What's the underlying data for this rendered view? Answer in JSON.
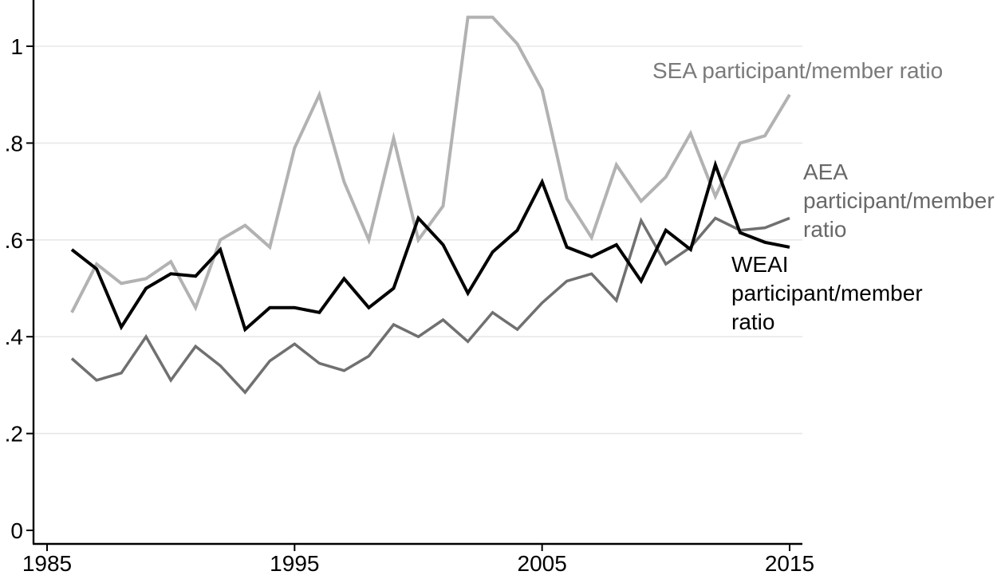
{
  "chart_data": {
    "type": "line",
    "x": [
      1986,
      1987,
      1988,
      1989,
      1990,
      1991,
      1992,
      1993,
      1994,
      1995,
      1996,
      1997,
      1998,
      1999,
      2000,
      2001,
      2002,
      2003,
      2004,
      2005,
      2006,
      2007,
      2008,
      2009,
      2010,
      2011,
      2012,
      2013,
      2014,
      2015
    ],
    "series": [
      {
        "name": "SEA participant/member ratio",
        "slug": "sea",
        "color": "#b2b2b2",
        "width": 4,
        "values": [
          0.45,
          0.55,
          0.51,
          0.52,
          0.555,
          0.46,
          0.6,
          0.63,
          0.585,
          0.79,
          0.9,
          0.72,
          0.6,
          0.81,
          0.6,
          0.67,
          1.06,
          1.06,
          1.005,
          0.91,
          0.685,
          0.605,
          0.755,
          0.68,
          0.73,
          0.82,
          0.69,
          0.8,
          0.815,
          0.9
        ]
      },
      {
        "name": "AEA participant/member ratio",
        "slug": "aea",
        "color": "#707070",
        "width": 3.5,
        "values": [
          0.355,
          0.31,
          0.325,
          0.4,
          0.31,
          0.38,
          0.34,
          0.285,
          0.35,
          0.385,
          0.345,
          0.33,
          0.36,
          0.425,
          0.4,
          0.435,
          0.39,
          0.45,
          0.415,
          0.47,
          0.515,
          0.53,
          0.475,
          0.64,
          0.55,
          0.585,
          0.645,
          0.62,
          0.625,
          0.645
        ]
      },
      {
        "name": "WEAI participant/member ratio",
        "slug": "weai",
        "color": "#000000",
        "width": 4,
        "values": [
          0.58,
          0.54,
          0.42,
          0.5,
          0.53,
          0.525,
          0.58,
          0.415,
          0.46,
          0.46,
          0.45,
          0.52,
          0.46,
          0.5,
          0.645,
          0.59,
          0.49,
          0.575,
          0.62,
          0.72,
          0.585,
          0.565,
          0.59,
          0.515,
          0.62,
          0.58,
          0.755,
          0.615,
          0.595,
          0.585
        ]
      }
    ],
    "title": "",
    "xlabel": "",
    "ylabel": "",
    "xlim": [
      1984.5,
      2015.5
    ],
    "ylim": [
      0,
      1.1
    ],
    "grid": "horizontal-major-ticks-only",
    "legend_position": "labels-next-to-lines",
    "x_ticks": [
      {
        "label": "1985",
        "value": 1985
      },
      {
        "label": "1995",
        "value": 1995
      },
      {
        "label": "2005",
        "value": 2005
      },
      {
        "label": "2015",
        "value": 2015
      }
    ],
    "y_ticks": [
      {
        "label": "0",
        "value": 0
      },
      {
        "label": ".2",
        "value": 0.2
      },
      {
        "label": ".4",
        "value": 0.4
      },
      {
        "label": ".6",
        "value": 0.6
      },
      {
        "label": ".8",
        "value": 0.8
      },
      {
        "label": "1",
        "value": 1
      }
    ]
  },
  "annotations": {
    "sea": {
      "text": "SEA participant/member ratio",
      "color": "#7a7a7a"
    },
    "aea": {
      "text": "AEA\nparticipant/member\nratio",
      "color": "#686868"
    },
    "weai": {
      "text": "WEAI\nparticipant/member\nratio",
      "color": "#000000"
    }
  },
  "style": {
    "background": "#ffffff",
    "gridline_color": "#e8e8e8",
    "axis_color": "#000000"
  }
}
